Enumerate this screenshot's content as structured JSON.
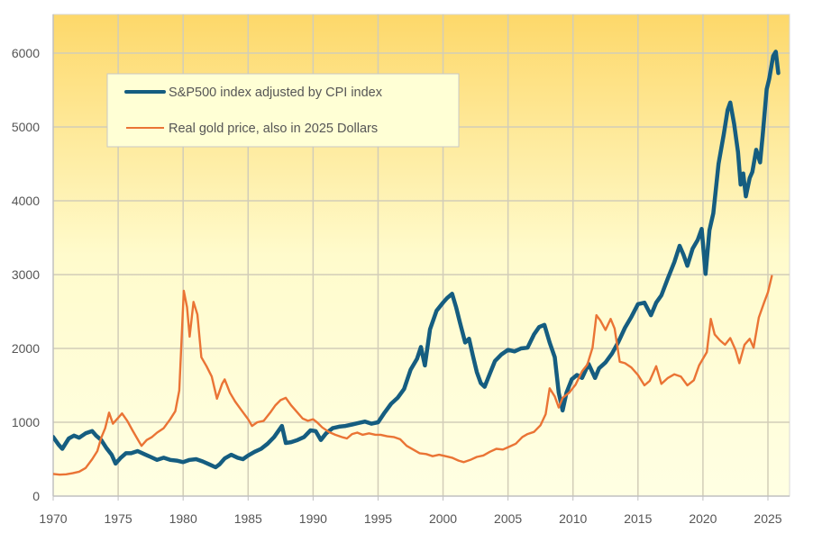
{
  "chart_data": {
    "type": "line",
    "title": "",
    "xlabel": "",
    "ylabel": "",
    "xlim": [
      1970,
      2026.6
    ],
    "ylim": [
      0,
      6500
    ],
    "x_ticks": [
      1970,
      1975,
      1980,
      1985,
      1990,
      1995,
      2000,
      2005,
      2010,
      2015,
      2020,
      2025
    ],
    "y_ticks": [
      0,
      1000,
      2000,
      3000,
      4000,
      5000,
      6000
    ],
    "grid": true,
    "legend_position": "top-left",
    "background_gradient": [
      "#fdd86a",
      "#fffbd0",
      "#ffffe3"
    ],
    "series": [
      {
        "name": "S&P500 index adjusted by CPI index",
        "color": "#155d80",
        "points": [
          [
            1970.0,
            800
          ],
          [
            1970.4,
            700
          ],
          [
            1970.7,
            640
          ],
          [
            1971.2,
            780
          ],
          [
            1971.6,
            820
          ],
          [
            1972.0,
            790
          ],
          [
            1972.5,
            850
          ],
          [
            1973.0,
            880
          ],
          [
            1973.3,
            820
          ],
          [
            1973.7,
            760
          ],
          [
            1974.1,
            650
          ],
          [
            1974.5,
            560
          ],
          [
            1974.8,
            440
          ],
          [
            1975.2,
            520
          ],
          [
            1975.6,
            580
          ],
          [
            1976.0,
            580
          ],
          [
            1976.5,
            610
          ],
          [
            1977.0,
            570
          ],
          [
            1977.5,
            530
          ],
          [
            1978.0,
            490
          ],
          [
            1978.5,
            520
          ],
          [
            1979.0,
            490
          ],
          [
            1979.5,
            480
          ],
          [
            1980.0,
            460
          ],
          [
            1980.5,
            490
          ],
          [
            1981.0,
            500
          ],
          [
            1981.5,
            470
          ],
          [
            1982.0,
            430
          ],
          [
            1982.5,
            390
          ],
          [
            1982.8,
            430
          ],
          [
            1983.2,
            510
          ],
          [
            1983.7,
            560
          ],
          [
            1984.2,
            520
          ],
          [
            1984.6,
            500
          ],
          [
            1985.0,
            550
          ],
          [
            1985.5,
            600
          ],
          [
            1986.0,
            640
          ],
          [
            1986.5,
            710
          ],
          [
            1987.0,
            800
          ],
          [
            1987.6,
            950
          ],
          [
            1987.9,
            720
          ],
          [
            1988.3,
            730
          ],
          [
            1988.8,
            760
          ],
          [
            1989.3,
            800
          ],
          [
            1989.8,
            890
          ],
          [
            1990.2,
            880
          ],
          [
            1990.6,
            760
          ],
          [
            1991.0,
            850
          ],
          [
            1991.5,
            920
          ],
          [
            1992.0,
            940
          ],
          [
            1992.5,
            950
          ],
          [
            1993.0,
            970
          ],
          [
            1993.5,
            990
          ],
          [
            1994.0,
            1010
          ],
          [
            1994.5,
            980
          ],
          [
            1995.0,
            1000
          ],
          [
            1995.5,
            1130
          ],
          [
            1996.0,
            1250
          ],
          [
            1996.5,
            1330
          ],
          [
            1997.0,
            1450
          ],
          [
            1997.5,
            1710
          ],
          [
            1998.0,
            1860
          ],
          [
            1998.3,
            2020
          ],
          [
            1998.6,
            1770
          ],
          [
            1999.0,
            2260
          ],
          [
            1999.5,
            2510
          ],
          [
            2000.0,
            2620
          ],
          [
            2000.3,
            2680
          ],
          [
            2000.7,
            2740
          ],
          [
            2001.0,
            2560
          ],
          [
            2001.3,
            2350
          ],
          [
            2001.7,
            2080
          ],
          [
            2002.0,
            2130
          ],
          [
            2002.3,
            1900
          ],
          [
            2002.6,
            1680
          ],
          [
            2002.9,
            1530
          ],
          [
            2003.2,
            1480
          ],
          [
            2003.6,
            1660
          ],
          [
            2004.0,
            1830
          ],
          [
            2004.5,
            1920
          ],
          [
            2005.0,
            1980
          ],
          [
            2005.5,
            1960
          ],
          [
            2006.0,
            2000
          ],
          [
            2006.5,
            2010
          ],
          [
            2007.0,
            2190
          ],
          [
            2007.4,
            2290
          ],
          [
            2007.8,
            2320
          ],
          [
            2008.2,
            2080
          ],
          [
            2008.6,
            1880
          ],
          [
            2008.9,
            1400
          ],
          [
            2009.2,
            1160
          ],
          [
            2009.5,
            1400
          ],
          [
            2009.9,
            1580
          ],
          [
            2010.3,
            1640
          ],
          [
            2010.7,
            1600
          ],
          [
            2011.2,
            1790
          ],
          [
            2011.7,
            1600
          ],
          [
            2012.0,
            1730
          ],
          [
            2012.5,
            1810
          ],
          [
            2013.0,
            1930
          ],
          [
            2013.5,
            2090
          ],
          [
            2014.0,
            2280
          ],
          [
            2014.5,
            2430
          ],
          [
            2015.0,
            2600
          ],
          [
            2015.5,
            2620
          ],
          [
            2016.0,
            2450
          ],
          [
            2016.4,
            2620
          ],
          [
            2016.8,
            2720
          ],
          [
            2017.3,
            2950
          ],
          [
            2017.8,
            3170
          ],
          [
            2018.2,
            3390
          ],
          [
            2018.5,
            3270
          ],
          [
            2018.8,
            3120
          ],
          [
            2019.2,
            3350
          ],
          [
            2019.6,
            3470
          ],
          [
            2019.9,
            3620
          ],
          [
            2020.2,
            3010
          ],
          [
            2020.5,
            3600
          ],
          [
            2020.8,
            3830
          ],
          [
            2021.2,
            4500
          ],
          [
            2021.6,
            4900
          ],
          [
            2021.9,
            5230
          ],
          [
            2022.1,
            5330
          ],
          [
            2022.4,
            5040
          ],
          [
            2022.7,
            4660
          ],
          [
            2022.9,
            4220
          ],
          [
            2023.1,
            4370
          ],
          [
            2023.3,
            4060
          ],
          [
            2023.6,
            4310
          ],
          [
            2023.8,
            4390
          ],
          [
            2024.1,
            4690
          ],
          [
            2024.4,
            4520
          ],
          [
            2024.6,
            4890
          ],
          [
            2024.9,
            5510
          ],
          [
            2025.1,
            5650
          ],
          [
            2025.4,
            5960
          ],
          [
            2025.6,
            6020
          ],
          [
            2025.8,
            5730
          ]
        ]
      },
      {
        "name": "Real gold price, also in 2025 Dollars",
        "color": "#ea7435",
        "points": [
          [
            1970.0,
            300
          ],
          [
            1970.5,
            290
          ],
          [
            1971.0,
            295
          ],
          [
            1971.5,
            310
          ],
          [
            1972.0,
            330
          ],
          [
            1972.5,
            380
          ],
          [
            1973.0,
            500
          ],
          [
            1973.4,
            610
          ],
          [
            1973.7,
            790
          ],
          [
            1974.0,
            920
          ],
          [
            1974.3,
            1130
          ],
          [
            1974.6,
            980
          ],
          [
            1975.0,
            1060
          ],
          [
            1975.3,
            1120
          ],
          [
            1975.7,
            1020
          ],
          [
            1976.1,
            890
          ],
          [
            1976.5,
            770
          ],
          [
            1976.8,
            680
          ],
          [
            1977.2,
            760
          ],
          [
            1977.6,
            800
          ],
          [
            1978.0,
            860
          ],
          [
            1978.5,
            920
          ],
          [
            1979.0,
            1040
          ],
          [
            1979.4,
            1150
          ],
          [
            1979.7,
            1430
          ],
          [
            1980.05,
            2780
          ],
          [
            1980.3,
            2560
          ],
          [
            1980.5,
            2160
          ],
          [
            1980.8,
            2630
          ],
          [
            1981.1,
            2460
          ],
          [
            1981.4,
            1880
          ],
          [
            1981.8,
            1760
          ],
          [
            1982.2,
            1620
          ],
          [
            1982.6,
            1320
          ],
          [
            1983.0,
            1520
          ],
          [
            1983.2,
            1580
          ],
          [
            1983.6,
            1400
          ],
          [
            1984.0,
            1280
          ],
          [
            1984.5,
            1160
          ],
          [
            1985.0,
            1040
          ],
          [
            1985.3,
            950
          ],
          [
            1985.7,
            1000
          ],
          [
            1986.2,
            1020
          ],
          [
            1986.7,
            1130
          ],
          [
            1987.1,
            1230
          ],
          [
            1987.5,
            1300
          ],
          [
            1987.9,
            1330
          ],
          [
            1988.3,
            1230
          ],
          [
            1988.8,
            1130
          ],
          [
            1989.2,
            1050
          ],
          [
            1989.6,
            1020
          ],
          [
            1990.0,
            1040
          ],
          [
            1990.3,
            1000
          ],
          [
            1990.7,
            930
          ],
          [
            1991.2,
            870
          ],
          [
            1991.7,
            830
          ],
          [
            1992.2,
            800
          ],
          [
            1992.6,
            780
          ],
          [
            1993.0,
            840
          ],
          [
            1993.4,
            860
          ],
          [
            1993.8,
            830
          ],
          [
            1994.3,
            850
          ],
          [
            1994.8,
            830
          ],
          [
            1995.2,
            830
          ],
          [
            1995.7,
            810
          ],
          [
            1996.2,
            800
          ],
          [
            1996.7,
            770
          ],
          [
            1997.2,
            680
          ],
          [
            1997.7,
            630
          ],
          [
            1998.2,
            580
          ],
          [
            1998.7,
            570
          ],
          [
            1999.2,
            540
          ],
          [
            1999.7,
            560
          ],
          [
            2000.2,
            540
          ],
          [
            2000.7,
            520
          ],
          [
            2001.2,
            480
          ],
          [
            2001.6,
            460
          ],
          [
            2002.1,
            490
          ],
          [
            2002.6,
            530
          ],
          [
            2003.1,
            550
          ],
          [
            2003.6,
            600
          ],
          [
            2004.1,
            640
          ],
          [
            2004.6,
            630
          ],
          [
            2005.1,
            670
          ],
          [
            2005.6,
            710
          ],
          [
            2006.1,
            800
          ],
          [
            2006.5,
            840
          ],
          [
            2007.0,
            870
          ],
          [
            2007.5,
            960
          ],
          [
            2007.9,
            1110
          ],
          [
            2008.2,
            1460
          ],
          [
            2008.6,
            1350
          ],
          [
            2008.9,
            1200
          ],
          [
            2009.2,
            1330
          ],
          [
            2009.7,
            1400
          ],
          [
            2010.2,
            1510
          ],
          [
            2010.7,
            1690
          ],
          [
            2011.1,
            1780
          ],
          [
            2011.5,
            2010
          ],
          [
            2011.8,
            2450
          ],
          [
            2012.1,
            2380
          ],
          [
            2012.5,
            2250
          ],
          [
            2012.9,
            2400
          ],
          [
            2013.2,
            2270
          ],
          [
            2013.6,
            1820
          ],
          [
            2014.0,
            1800
          ],
          [
            2014.5,
            1740
          ],
          [
            2015.0,
            1640
          ],
          [
            2015.5,
            1500
          ],
          [
            2015.9,
            1560
          ],
          [
            2016.4,
            1760
          ],
          [
            2016.8,
            1520
          ],
          [
            2017.3,
            1600
          ],
          [
            2017.8,
            1650
          ],
          [
            2018.3,
            1620
          ],
          [
            2018.8,
            1500
          ],
          [
            2019.3,
            1570
          ],
          [
            2019.7,
            1770
          ],
          [
            2020.3,
            1950
          ],
          [
            2020.6,
            2400
          ],
          [
            2020.9,
            2190
          ],
          [
            2021.3,
            2110
          ],
          [
            2021.7,
            2050
          ],
          [
            2022.1,
            2140
          ],
          [
            2022.5,
            1980
          ],
          [
            2022.8,
            1800
          ],
          [
            2023.2,
            2050
          ],
          [
            2023.6,
            2130
          ],
          [
            2023.9,
            2010
          ],
          [
            2024.3,
            2420
          ],
          [
            2024.7,
            2620
          ],
          [
            2025.0,
            2760
          ],
          [
            2025.3,
            2980
          ]
        ]
      }
    ]
  },
  "legend": {
    "items": [
      {
        "label": "S&P500 index adjusted by CPI index",
        "color": "#155d80"
      },
      {
        "label": "Real gold price, also in 2025 Dollars",
        "color": "#ea7435"
      }
    ]
  }
}
